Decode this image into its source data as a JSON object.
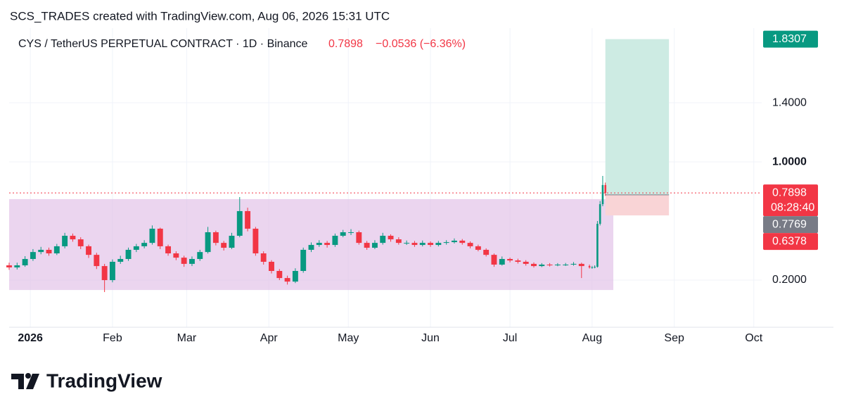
{
  "attribution": "SCS_TRADES created with TradingView.com, Aug 06, 2026 15:31 UTC",
  "brand": "TradingView",
  "chart_data": {
    "type": "candlestick",
    "title": "CYS / TetherUS PERPETUAL CONTRACT · 1D · Binance",
    "last_price": 0.7898,
    "change": "−0.0536 (−6.36%)",
    "countdown": "08:28:40",
    "up_color": "#089981",
    "down_color": "#f23645",
    "grid": true,
    "xlim": [
      -8,
      276
    ],
    "ylim": [
      -0.119,
      1.905
    ],
    "xticks": [
      {
        "value": 0,
        "label": "2026"
      },
      {
        "value": 31,
        "label": "Feb"
      },
      {
        "value": 59,
        "label": "Mar"
      },
      {
        "value": 90,
        "label": "Apr"
      },
      {
        "value": 120,
        "label": "May"
      },
      {
        "value": 151,
        "label": "Jun"
      },
      {
        "value": 181,
        "label": "Jul"
      },
      {
        "value": 212,
        "label": "Aug"
      },
      {
        "value": 243,
        "label": "Sep"
      },
      {
        "value": 273,
        "label": "Oct"
      }
    ],
    "yticks": [
      {
        "value": 0.2,
        "label": "0.2000"
      },
      {
        "value": 1.0,
        "label": "1.0000"
      },
      {
        "value": 1.4,
        "label": "1.4000"
      }
    ],
    "x": [
      -8,
      -5,
      -2,
      1,
      4,
      7,
      10,
      13,
      16,
      19,
      22,
      25,
      28,
      31,
      34,
      37,
      40,
      43,
      46,
      49,
      52,
      55,
      58,
      61,
      64,
      67,
      70,
      73,
      76,
      79,
      82,
      85,
      88,
      91,
      94,
      97,
      100,
      103,
      106,
      109,
      112,
      115,
      118,
      121,
      124,
      127,
      130,
      133,
      136,
      139,
      142,
      145,
      148,
      151,
      154,
      157,
      160,
      163,
      166,
      169,
      172,
      175,
      178,
      181,
      184,
      187,
      190,
      193,
      196,
      199,
      202,
      205,
      208,
      211,
      212,
      213,
      214,
      215,
      216,
      217
    ],
    "open": [
      0.3,
      0.286,
      0.3,
      0.343,
      0.39,
      0.405,
      0.381,
      0.429,
      0.5,
      0.476,
      0.429,
      0.371,
      0.295,
      0.2,
      0.324,
      0.343,
      0.405,
      0.429,
      0.452,
      0.548,
      0.429,
      0.381,
      0.352,
      0.31,
      0.343,
      0.39,
      0.524,
      0.452,
      0.419,
      0.5,
      0.667,
      0.548,
      0.381,
      0.324,
      0.262,
      0.214,
      0.19,
      0.262,
      0.405,
      0.438,
      0.452,
      0.438,
      0.5,
      0.524,
      0.524,
      0.452,
      0.419,
      0.452,
      0.5,
      0.476,
      0.452,
      0.452,
      0.438,
      0.452,
      0.438,
      0.452,
      0.457,
      0.467,
      0.452,
      0.429,
      0.405,
      0.371,
      0.305,
      0.343,
      0.333,
      0.324,
      0.31,
      0.295,
      0.305,
      0.3,
      0.305,
      0.305,
      0.31,
      0.295,
      0.286,
      0.286,
      0.29,
      0.581,
      0.714,
      0.8434
    ],
    "high": [
      0.318,
      0.318,
      0.362,
      0.41,
      0.425,
      0.42,
      0.445,
      0.52,
      0.515,
      0.49,
      0.44,
      0.385,
      0.31,
      0.34,
      0.365,
      0.42,
      0.445,
      0.47,
      0.57,
      0.555,
      0.44,
      0.395,
      0.365,
      0.36,
      0.405,
      0.56,
      0.535,
      0.465,
      0.52,
      0.762,
      0.69,
      0.56,
      0.395,
      0.335,
      0.275,
      0.23,
      0.28,
      0.42,
      0.455,
      0.47,
      0.465,
      0.515,
      0.54,
      0.545,
      0.535,
      0.465,
      0.47,
      0.52,
      0.51,
      0.49,
      0.468,
      0.465,
      0.468,
      0.462,
      0.465,
      0.47,
      0.482,
      0.478,
      0.462,
      0.44,
      0.415,
      0.38,
      0.36,
      0.352,
      0.345,
      0.335,
      0.32,
      0.315,
      0.315,
      0.315,
      0.316,
      0.322,
      0.318,
      0.305,
      0.296,
      0.3,
      0.6,
      0.735,
      0.905,
      0.86
    ],
    "low": [
      0.27,
      0.272,
      0.29,
      0.33,
      0.375,
      0.365,
      0.37,
      0.415,
      0.46,
      0.41,
      0.35,
      0.275,
      0.119,
      0.185,
      0.31,
      0.33,
      0.39,
      0.415,
      0.44,
      0.41,
      0.365,
      0.335,
      0.29,
      0.295,
      0.33,
      0.38,
      0.435,
      0.4,
      0.41,
      0.49,
      0.53,
      0.365,
      0.305,
      0.245,
      0.2,
      0.17,
      0.18,
      0.25,
      0.39,
      0.425,
      0.42,
      0.425,
      0.49,
      0.505,
      0.44,
      0.405,
      0.41,
      0.44,
      0.46,
      0.44,
      0.438,
      0.425,
      0.428,
      0.425,
      0.428,
      0.44,
      0.448,
      0.44,
      0.415,
      0.395,
      0.36,
      0.29,
      0.298,
      0.32,
      0.312,
      0.298,
      0.285,
      0.288,
      0.292,
      0.294,
      0.296,
      0.298,
      0.214,
      0.278,
      0.278,
      0.28,
      0.285,
      0.57,
      0.7,
      0.77
    ],
    "close": [
      0.286,
      0.3,
      0.343,
      0.39,
      0.405,
      0.381,
      0.429,
      0.5,
      0.476,
      0.429,
      0.371,
      0.295,
      0.2,
      0.324,
      0.343,
      0.405,
      0.429,
      0.452,
      0.548,
      0.429,
      0.381,
      0.352,
      0.31,
      0.343,
      0.39,
      0.524,
      0.452,
      0.419,
      0.5,
      0.667,
      0.548,
      0.381,
      0.324,
      0.262,
      0.214,
      0.19,
      0.262,
      0.405,
      0.438,
      0.452,
      0.438,
      0.5,
      0.524,
      0.524,
      0.452,
      0.419,
      0.452,
      0.5,
      0.476,
      0.452,
      0.452,
      0.438,
      0.452,
      0.438,
      0.452,
      0.457,
      0.467,
      0.452,
      0.429,
      0.405,
      0.371,
      0.305,
      0.343,
      0.333,
      0.324,
      0.31,
      0.295,
      0.305,
      0.3,
      0.305,
      0.305,
      0.31,
      0.295,
      0.286,
      0.286,
      0.29,
      0.581,
      0.714,
      0.8434,
      0.7898
    ],
    "range_box": {
      "xlim": [
        -8,
        220
      ],
      "ylim": [
        0.133,
        0.748
      ],
      "color": "#e1bee7"
    },
    "position": {
      "xlim": [
        217,
        241
      ],
      "entry": 0.7769,
      "target": 1.8307,
      "stop": 0.6378,
      "profit_color": "#cdebe3",
      "loss_color": "#f9d4d6",
      "entry_color": "#787b86"
    }
  }
}
